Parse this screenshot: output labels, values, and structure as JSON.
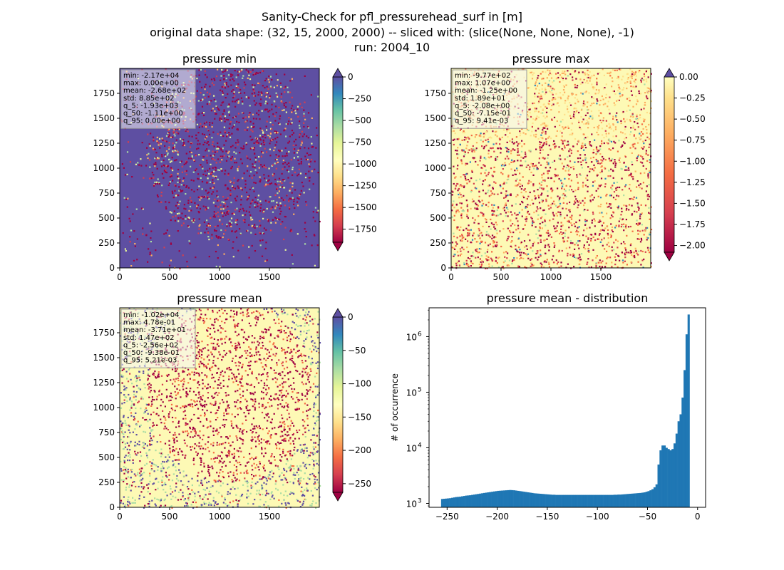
{
  "figure": {
    "suptitle": [
      "Sanity-Check for pfl_pressurehead_surf in [m]",
      "original data shape: (32, 15, 2000, 2000) -- sliced with: (slice(None, None, None), -1)",
      "run: 2004_10"
    ]
  },
  "chart_data": [
    {
      "type": "heatmap",
      "title": "pressure min",
      "xlim": [
        0,
        2000
      ],
      "ylim": [
        0,
        2000
      ],
      "xticks": [
        0,
        500,
        1000,
        1500
      ],
      "yticks": [
        0,
        250,
        500,
        750,
        1000,
        1250,
        1500,
        1750
      ],
      "colormap": "Spectral",
      "background_color": "#5e4fa2",
      "colorbar": {
        "range": [
          -1900,
          0
        ],
        "ticks": [
          0,
          -250,
          -500,
          -750,
          -1000,
          -1250,
          -1500,
          -1750
        ],
        "extend": "both"
      },
      "stats": [
        "min: -2.17e+04",
        "max: 0.00e+00",
        "mean: -2.68e+02",
        "std: 8.85e+02",
        "q_5: -1.93e+03",
        "q_50: -1.11e+00",
        "q_95: 0.00e+00"
      ]
    },
    {
      "type": "heatmap",
      "title": "pressure max",
      "xlim": [
        0,
        2000
      ],
      "ylim": [
        0,
        2000
      ],
      "xticks": [
        0,
        500,
        1000,
        1500
      ],
      "yticks": [
        0,
        250,
        500,
        750,
        1000,
        1250,
        1500,
        1750
      ],
      "colormap": "Spectral",
      "background_color": "#fdf9b5",
      "colorbar": {
        "range": [
          -2.08,
          0.0
        ],
        "ticks": [
          "0.00",
          "-0.25",
          "-0.50",
          "-0.75",
          "-1.00",
          "-1.25",
          "-1.50",
          "-1.75",
          "-2.00"
        ],
        "extend": "both"
      },
      "stats": [
        "min: -9.77e+02",
        "max: 1.07e+00",
        "mean: -1.25e+00",
        "std: 1.89e+01",
        "q_5: -2.08e+00",
        "q_50: -7.15e-01",
        "q_95: 9.41e-03"
      ]
    },
    {
      "type": "heatmap",
      "title": "pressure mean",
      "xlim": [
        0,
        2000
      ],
      "ylim": [
        0,
        2000
      ],
      "xticks": [
        0,
        500,
        1000,
        1500
      ],
      "yticks": [
        0,
        250,
        500,
        750,
        1000,
        1250,
        1500,
        1750
      ],
      "colormap": "Spectral",
      "background_color": "#fdf9b5",
      "colorbar": {
        "range": [
          -263,
          0
        ],
        "ticks": [
          0,
          -50,
          -100,
          -150,
          -200,
          -250
        ],
        "extend": "both"
      },
      "stats": [
        "min: -1.02e+04",
        "max: 4.78e-01",
        "mean: -3.71e+01",
        "std: 1.47e+02",
        "q_5: -2.56e+02",
        "q_50: -9.38e-01",
        "q_95: 5.21e-03"
      ]
    },
    {
      "type": "bar",
      "title": "pressure mean - distribution",
      "ylabel": "# of occurrence",
      "yscale": "log",
      "xlim": [
        -268,
        8
      ],
      "ylim": [
        850,
        3300000
      ],
      "xticks": [
        -250,
        -200,
        -150,
        -100,
        -50,
        0
      ],
      "xticklabels": [
        "−250",
        "−200",
        "−150",
        "−100",
        "−50",
        "0"
      ],
      "ytick_labels": [
        "10",
        "10",
        "10",
        "10"
      ],
      "ytick_exponents": [
        "3",
        "4",
        "5",
        "6"
      ],
      "ytick_values": [
        1000,
        10000,
        100000,
        1000000
      ],
      "bar_color": "#1f77b4",
      "bin_width": 2,
      "bin_starts": [
        -256,
        -254,
        -252,
        -250,
        -248,
        -246,
        -244,
        -242,
        -240,
        -238,
        -236,
        -234,
        -232,
        -230,
        -228,
        -226,
        -224,
        -222,
        -220,
        -218,
        -216,
        -214,
        -212,
        -210,
        -208,
        -206,
        -204,
        -202,
        -200,
        -198,
        -196,
        -194,
        -192,
        -190,
        -188,
        -186,
        -184,
        -182,
        -180,
        -178,
        -176,
        -174,
        -172,
        -170,
        -168,
        -166,
        -164,
        -162,
        -160,
        -158,
        -156,
        -154,
        -152,
        -150,
        -148,
        -146,
        -144,
        -142,
        -140,
        -138,
        -136,
        -134,
        -132,
        -130,
        -128,
        -126,
        -124,
        -122,
        -120,
        -118,
        -116,
        -114,
        -112,
        -110,
        -108,
        -106,
        -104,
        -102,
        -100,
        -98,
        -96,
        -94,
        -92,
        -90,
        -88,
        -86,
        -84,
        -82,
        -80,
        -78,
        -76,
        -74,
        -72,
        -70,
        -68,
        -66,
        -64,
        -62,
        -60,
        -58,
        -56,
        -54,
        -52,
        -50,
        -48,
        -46,
        -44,
        -42,
        -40,
        -38,
        -36,
        -34,
        -32,
        -30,
        -28,
        -26,
        -24,
        -22,
        -20,
        -18,
        -16,
        -14,
        -12,
        -10,
        -8,
        -6,
        -4,
        -2
      ],
      "counts": [
        1200,
        1210,
        1220,
        1230,
        1240,
        1260,
        1280,
        1300,
        1310,
        1320,
        1340,
        1360,
        1380,
        1390,
        1400,
        1420,
        1440,
        1460,
        1480,
        1500,
        1520,
        1540,
        1560,
        1580,
        1600,
        1620,
        1640,
        1660,
        1680,
        1690,
        1700,
        1710,
        1720,
        1730,
        1740,
        1730,
        1720,
        1700,
        1680,
        1660,
        1640,
        1620,
        1600,
        1580,
        1560,
        1540,
        1520,
        1510,
        1500,
        1490,
        1480,
        1470,
        1460,
        1450,
        1440,
        1430,
        1430,
        1420,
        1420,
        1420,
        1420,
        1420,
        1420,
        1420,
        1420,
        1420,
        1420,
        1420,
        1420,
        1420,
        1420,
        1420,
        1420,
        1420,
        1420,
        1420,
        1420,
        1420,
        1420,
        1420,
        1420,
        1420,
        1420,
        1420,
        1420,
        1420,
        1430,
        1430,
        1440,
        1440,
        1450,
        1460,
        1470,
        1480,
        1490,
        1500,
        1510,
        1520,
        1530,
        1540,
        1560,
        1580,
        1620,
        1660,
        1720,
        1800,
        1950,
        2200,
        5000,
        9000,
        11000,
        11000,
        10000,
        9500,
        9000,
        9500,
        12000,
        18000,
        30000,
        40000,
        80000,
        250000,
        1100000,
        2500000
      ]
    }
  ]
}
